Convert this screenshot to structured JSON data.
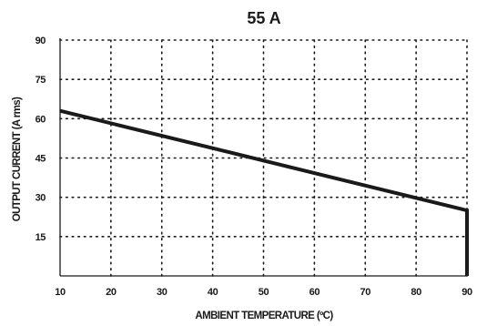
{
  "chart_data": {
    "type": "line",
    "title": "55 A",
    "xlabel": "AMBIENT TEMPERATURE (ºC)",
    "ylabel": "OUTPUT CURRENT (A rms)",
    "xlim": [
      10,
      90
    ],
    "ylim": [
      0,
      90
    ],
    "xticks": [
      10,
      20,
      30,
      40,
      50,
      60,
      70,
      80,
      90
    ],
    "yticks": [
      15,
      30,
      45,
      60,
      75,
      90
    ],
    "grid": true,
    "grid_style": "dotted",
    "line_color": "#1a1a1a",
    "series": [
      {
        "x": [
          10,
          90,
          90
        ],
        "y": [
          63,
          25,
          0
        ]
      }
    ]
  }
}
